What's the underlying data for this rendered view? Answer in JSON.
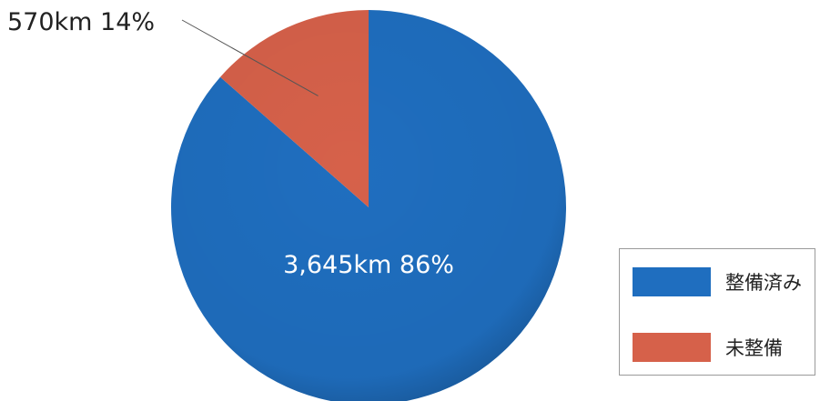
{
  "chart_data": {
    "type": "pie",
    "start": "12 o'clock, clockwise",
    "slices": [
      {
        "name": "整備済み",
        "value": 3645,
        "percent": 86,
        "unit": "km",
        "label": "3,645km  86%",
        "color": "#1f6ebf"
      },
      {
        "name": "未整備",
        "value": 570,
        "percent": 14,
        "unit": "km",
        "label": "570km  14%",
        "color": "#d6614a"
      }
    ],
    "legend_position": "bottom-right"
  }
}
